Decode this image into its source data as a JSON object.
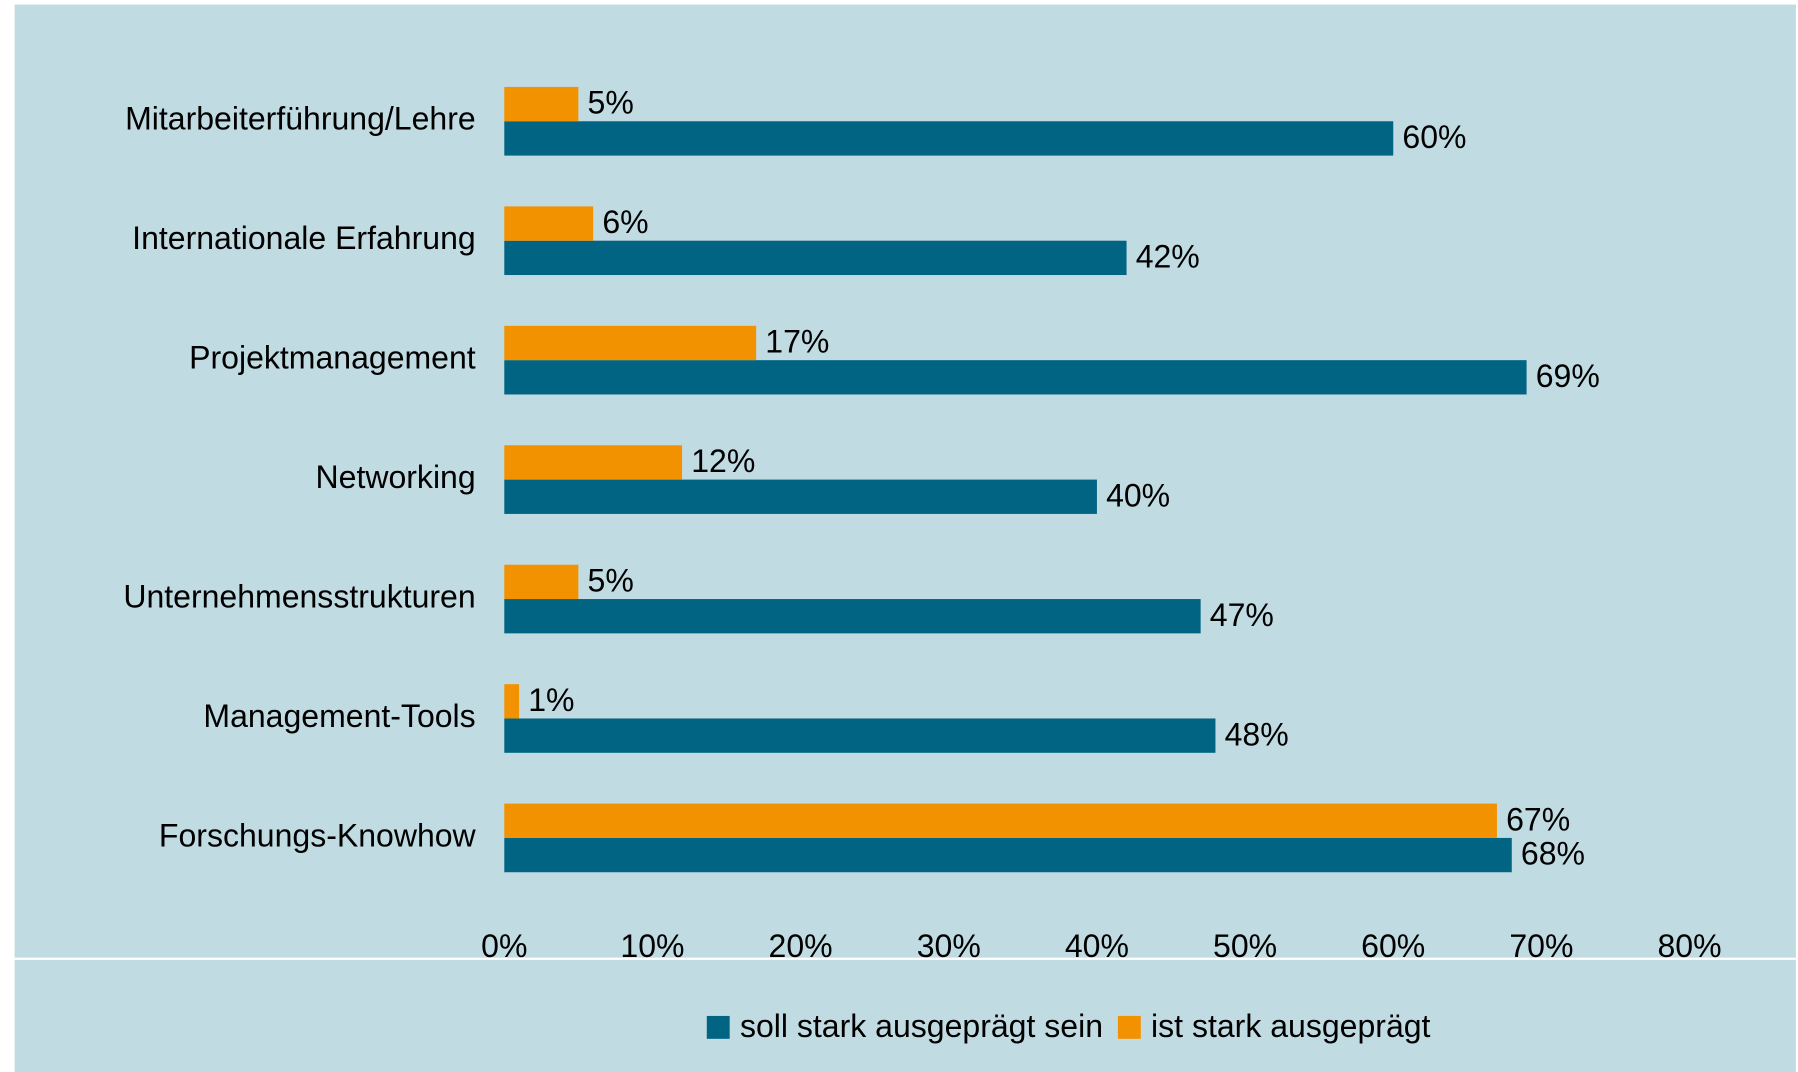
{
  "chart_data": {
    "type": "bar",
    "orientation": "horizontal",
    "categories": [
      "Mitarbeiterführung/Lehre",
      "Internationale Erfahrung",
      "Projektmanagement",
      "Networking",
      "Unternehmensstrukturen",
      "Management-Tools",
      "Forschungs-Knowhow"
    ],
    "series": [
      {
        "name": "soll stark ausgeprägt sein",
        "color": "#006482",
        "values": [
          60,
          42,
          69,
          40,
          47,
          48,
          68
        ],
        "value_labels": [
          "60%",
          "42%",
          "69%",
          "40%",
          "47%",
          "48%",
          "68%"
        ]
      },
      {
        "name": "ist stark ausgeprägt",
        "color": "#f39200",
        "values": [
          5,
          6,
          17,
          12,
          5,
          1,
          67
        ],
        "value_labels": [
          "5%",
          "6%",
          "17%",
          "12%",
          "5%",
          "1%",
          "67%"
        ]
      }
    ],
    "xlim": [
      0,
      80
    ],
    "xticks": [
      {
        "value": 0,
        "label": "0%"
      },
      {
        "value": 10,
        "label": "10%"
      },
      {
        "value": 20,
        "label": "20%"
      },
      {
        "value": 30,
        "label": "30%"
      },
      {
        "value": 40,
        "label": "40%"
      },
      {
        "value": 50,
        "label": "50%"
      },
      {
        "value": 60,
        "label": "60%"
      },
      {
        "value": 70,
        "label": "70%"
      },
      {
        "value": 80,
        "label": "80%"
      }
    ],
    "legend": "bottom"
  }
}
